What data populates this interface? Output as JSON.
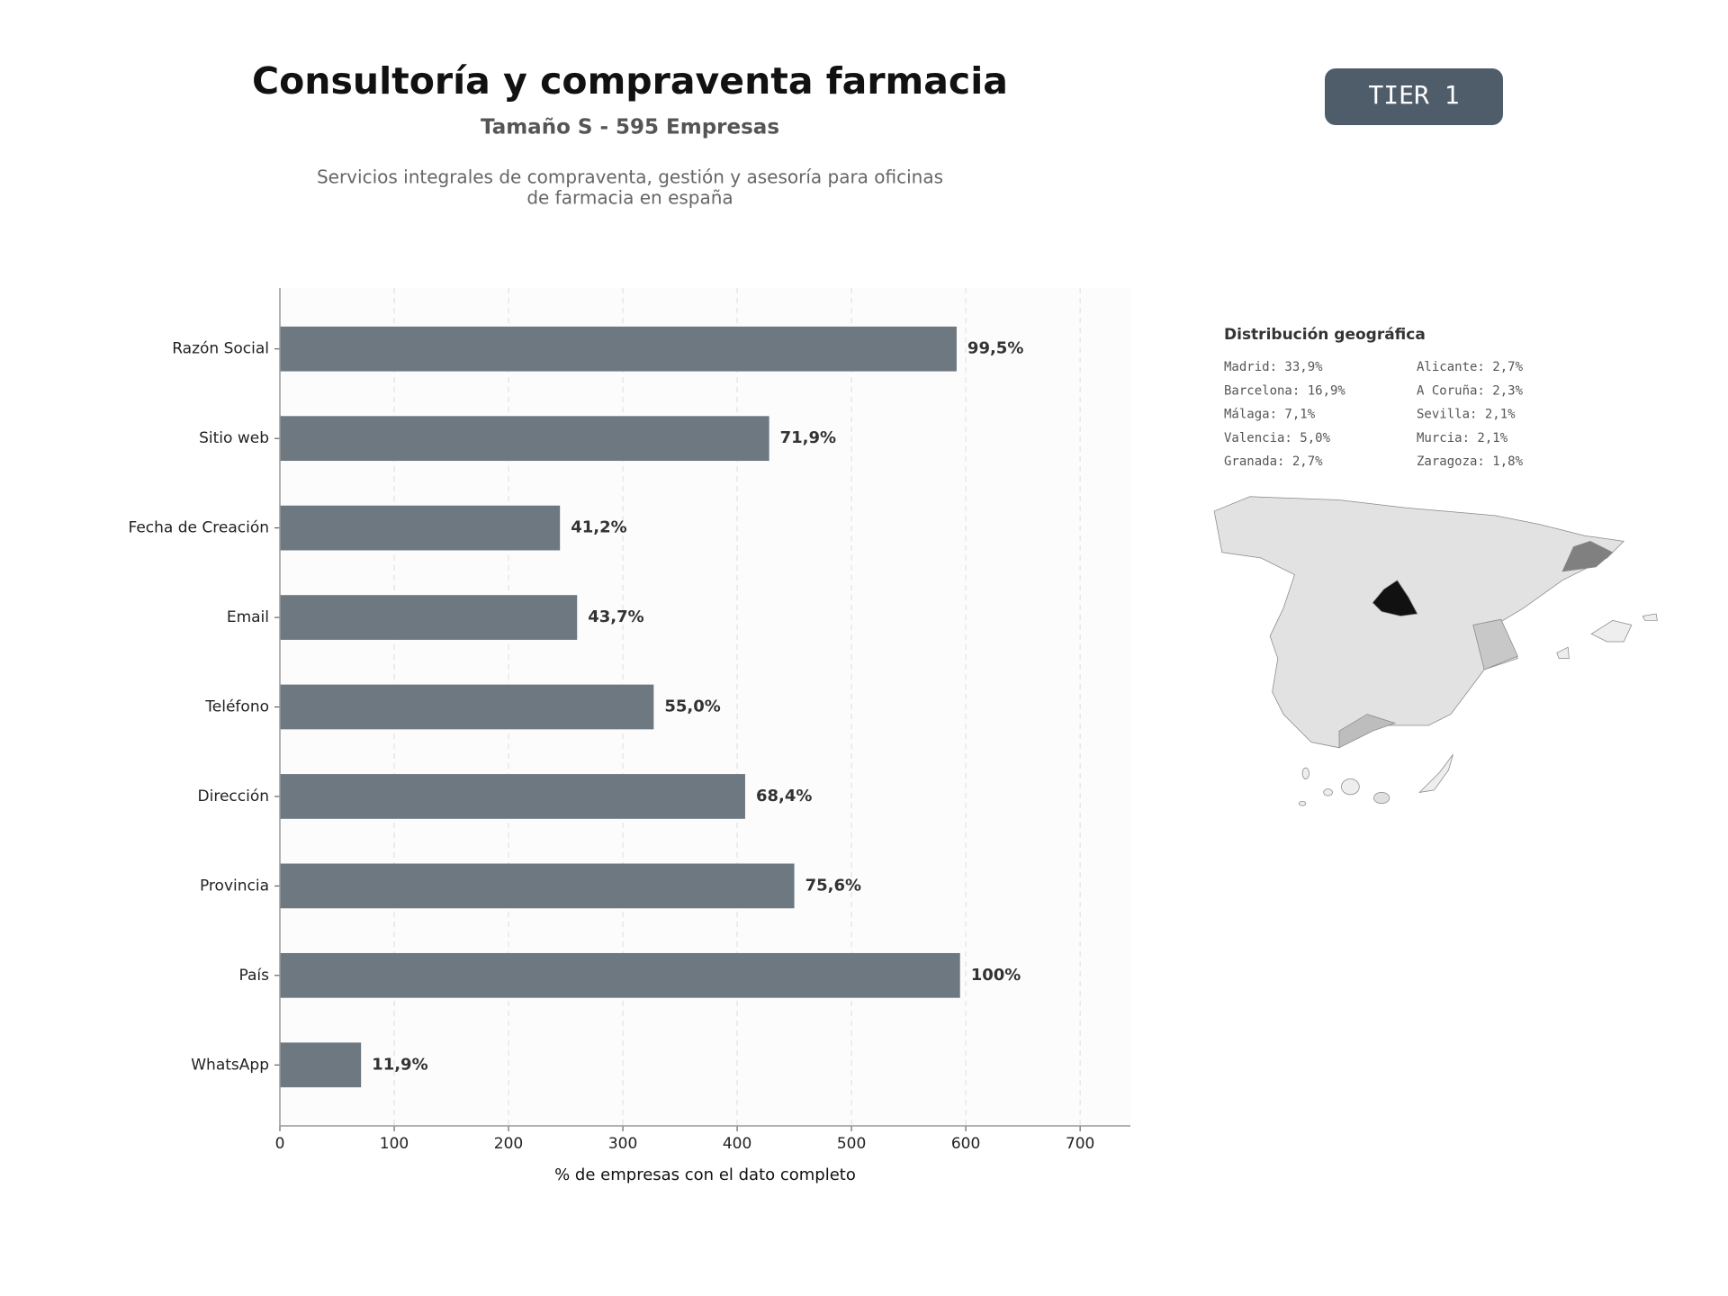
{
  "chart_data": {
    "type": "hbar",
    "title": "Consultoría y compraventa farmacia",
    "subtitle": "Tamaño S - 595 Empresas",
    "description": [
      "Servicios integrales de compraventa, gestión y asesoría para oficinas",
      "de farmacia en españa"
    ],
    "x_label": "% de empresas con el dato completo",
    "categories": [
      "Razón Social",
      "Sitio web",
      "Fecha de Creación",
      "Email",
      "Teléfono",
      "Dirección",
      "Provincia",
      "País",
      "WhatsApp"
    ],
    "values": [
      592,
      428,
      245,
      260,
      327,
      407,
      450,
      595,
      71
    ],
    "value_labels": [
      "99,5%",
      "71,9%",
      "41,2%",
      "43,7%",
      "55,0%",
      "68,4%",
      "75,6%",
      "100%",
      "11,9%"
    ],
    "color": "#6e7881",
    "xlim": [
      0,
      744
    ],
    "xticks": [
      0,
      100,
      200,
      300,
      400,
      500,
      600,
      700
    ],
    "grid": true
  },
  "badge": "TIER 1",
  "map": {
    "title": "Distribución geográfica",
    "items": [
      "Madrid: 33,9%",
      "Barcelona: 16,9%",
      "Málaga: 7,1%",
      "Valencia: 5,0%",
      "Granada: 2,7%",
      "Alicante: 2,7%",
      "A Coruña: 2,3%",
      "Sevilla: 2,1%",
      "Murcia: 2,1%",
      "Zaragoza: 1,8%"
    ]
  }
}
